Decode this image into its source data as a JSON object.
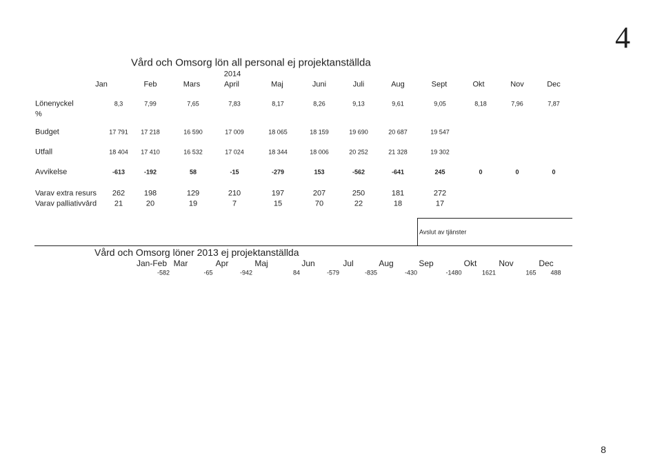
{
  "page_number_top": "4",
  "table_2014": {
    "title": "Vård och Omsorg lön all personal ej  projektanställda",
    "year": "2014",
    "months": [
      "Jan",
      "Feb",
      "Mars",
      "April",
      "Maj",
      "Juni",
      "Juli",
      "Aug",
      "Sept",
      "Okt",
      "Nov",
      "Dec"
    ],
    "rows": [
      {
        "label": "Lönenyckel",
        "sublabel": "%",
        "values": [
          "8,3",
          "7,99",
          "7,65",
          "7,83",
          "8,17",
          "8,26",
          "9,13",
          "9,61",
          "9,05",
          "8,18",
          "7,96",
          "7,87"
        ]
      },
      {
        "label": "Budget",
        "values": [
          "17 791",
          "17 218",
          "16 590",
          "17 009",
          "18 065",
          "18 159",
          "19 690",
          "20 687",
          "19 547"
        ]
      },
      {
        "label": "Utfall",
        "values": [
          "18 404",
          "17 410",
          "16 532",
          "17 024",
          "18 344",
          "18 006",
          "20 252",
          "21 328",
          "19 302"
        ]
      },
      {
        "label": "Avvikelse",
        "values": [
          "-613",
          "-192",
          "58",
          "-15",
          "-279",
          "153",
          "-562",
          "-641",
          "245",
          "0",
          "0",
          "0"
        ]
      },
      {
        "label": "Varav extra resurs",
        "values": [
          "262",
          "198",
          "129",
          "210",
          "197",
          "207",
          "250",
          "181",
          "272"
        ]
      },
      {
        "label": "Varav palliativvård",
        "values": [
          "21",
          "20",
          "19",
          "7",
          "15",
          "70",
          "22",
          "18",
          "17"
        ]
      }
    ]
  },
  "box_label": "Avslut av tjänster",
  "table_2013": {
    "title": "Vård och Omsorg löner 2013 ej projektanställda",
    "months": [
      "Jan-Feb",
      "Mar",
      "Apr",
      "Maj",
      "Jun",
      "Jul",
      "Aug",
      "Sep",
      "Okt",
      "Nov",
      "Dec"
    ],
    "values": [
      "-582",
      "-65",
      "-942",
      "84",
      "-579",
      "-835",
      "-430",
      "-1480",
      "1621",
      "165",
      "488"
    ]
  },
  "page_number_bottom": "8"
}
